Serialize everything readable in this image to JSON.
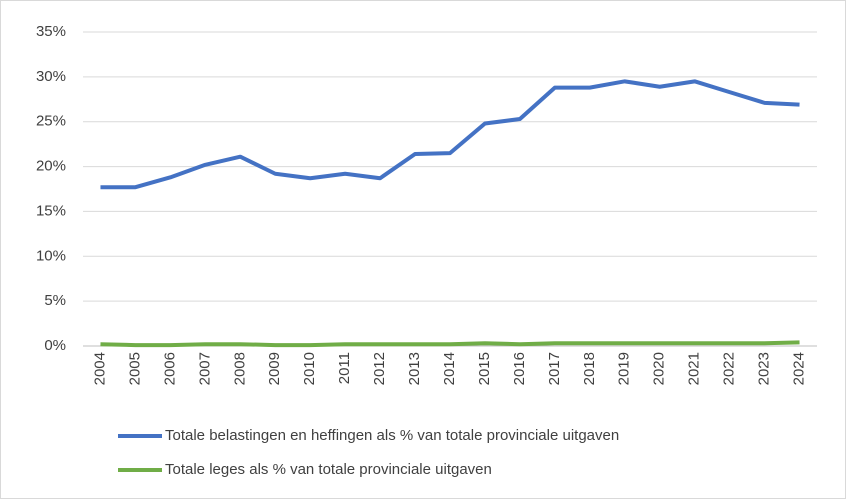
{
  "chart_data": {
    "type": "line",
    "categories": [
      "2004",
      "2005",
      "2006",
      "2007",
      "2008",
      "2009",
      "2010",
      "2011",
      "2012",
      "2013",
      "2014",
      "2015",
      "2016",
      "2017",
      "2018",
      "2019",
      "2020",
      "2021",
      "2022",
      "2023",
      "2024"
    ],
    "series": [
      {
        "name": "Totale belastingen en heffingen als % van totale provinciale uitgaven",
        "color": "#4472c4",
        "values": [
          17.7,
          17.7,
          18.8,
          20.2,
          21.1,
          19.2,
          18.7,
          19.2,
          18.7,
          21.4,
          21.5,
          24.8,
          25.3,
          28.8,
          28.8,
          29.5,
          28.9,
          29.5,
          28.3,
          27.1,
          26.9
        ]
      },
      {
        "name": "Totale leges als % van totale provinciale uitgaven",
        "color": "#70ad47",
        "values": [
          0.2,
          0.1,
          0.1,
          0.2,
          0.2,
          0.1,
          0.1,
          0.2,
          0.2,
          0.2,
          0.2,
          0.3,
          0.2,
          0.3,
          0.3,
          0.3,
          0.3,
          0.3,
          0.3,
          0.3,
          0.4
        ]
      }
    ],
    "ylim": [
      0,
      35
    ],
    "yticks": [
      {
        "value": 0,
        "label": "0%"
      },
      {
        "value": 5,
        "label": "5%"
      },
      {
        "value": 10,
        "label": "10%"
      },
      {
        "value": 15,
        "label": "15%"
      },
      {
        "value": 20,
        "label": "20%"
      },
      {
        "value": 25,
        "label": "25%"
      },
      {
        "value": 30,
        "label": "30%"
      },
      {
        "value": 35,
        "label": "35%"
      }
    ],
    "grid": true
  }
}
